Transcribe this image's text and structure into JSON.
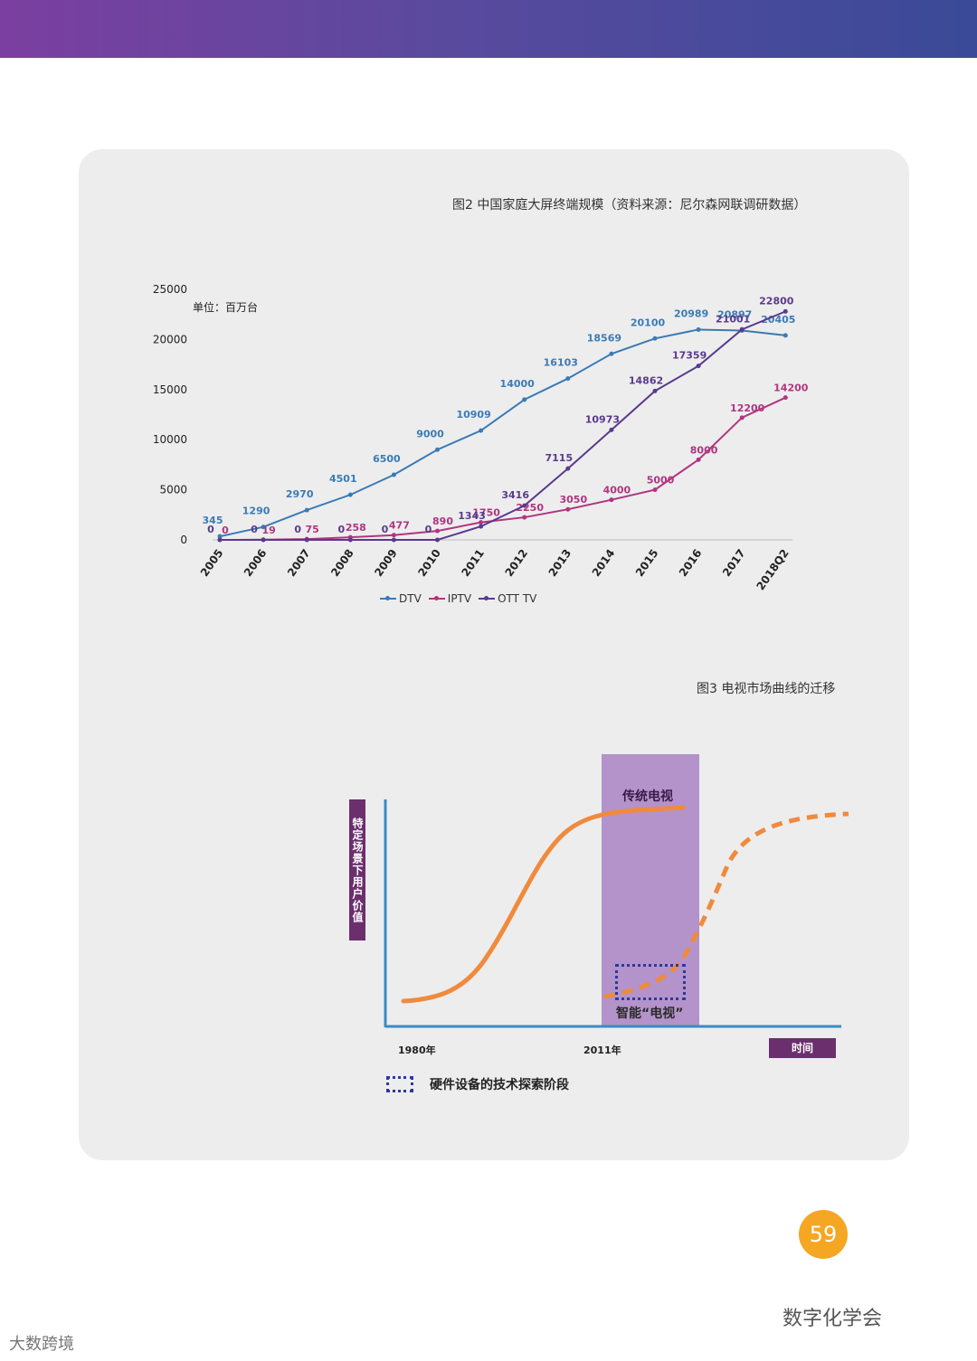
{
  "figure2": {
    "title": "图2 中国家庭大屏终端规模（资料来源：尼尔森网联调研数据）",
    "unit": "单位：百万台"
  },
  "figure3": {
    "title": "图3 电视市场曲线的迁移",
    "ylabel": "特定场景下用户价值",
    "xlabel": "时间",
    "tick_1980": "1980年",
    "tick_2011": "2011年",
    "traditional_tv": "传统电视",
    "smart_tv": "智能“电视”",
    "legend_hw": "硬件设备的技术探索阶段"
  },
  "chart_data": [
    {
      "type": "line",
      "title": "图2 中国家庭大屏终端规模（资料来源：尼尔森网联调研数据）",
      "categories": [
        "2005",
        "2006",
        "2007",
        "2008",
        "2009",
        "2010",
        "2011",
        "2012",
        "2013",
        "2014",
        "2015",
        "2016",
        "2017",
        "2018Q2"
      ],
      "series": [
        {
          "name": "DTV",
          "color": "#3a7bb5",
          "values": [
            345,
            1290,
            2970,
            4501,
            6500,
            9000,
            10909,
            14000,
            16103,
            18569,
            20100,
            20989,
            20897,
            20405
          ],
          "labels": [
            "345",
            "1290",
            "2970",
            "4501",
            "6500",
            "9000",
            "10909",
            "14000",
            "16103",
            "18569",
            "20100",
            "20989",
            "20897",
            "20405"
          ]
        },
        {
          "name": "IPTV",
          "color": "#b0357f",
          "values": [
            0,
            19,
            75,
            258,
            477,
            890,
            1750,
            2250,
            3050,
            4000,
            5000,
            8000,
            12200,
            14200
          ],
          "labels": [
            "0",
            "19",
            "75",
            "258",
            "477",
            "890",
            "1750",
            "2250",
            "3050",
            "4000",
            "5000",
            "8000",
            "12200",
            "14200"
          ]
        },
        {
          "name": "OTT TV",
          "color": "#5a3a8c",
          "values": [
            0,
            0,
            0,
            0,
            0,
            0,
            1343,
            3416,
            7115,
            10973,
            14862,
            17359,
            21001,
            22800
          ],
          "labels": [
            "0",
            "0",
            "0",
            "0",
            "0",
            "0",
            "1343",
            "3416",
            "7115",
            "10973",
            "14862",
            "17359",
            "21001",
            "22800"
          ]
        }
      ],
      "yticks": [
        0,
        5000,
        10000,
        15000,
        20000,
        25000
      ],
      "ylim": [
        0,
        25000
      ],
      "legend": "bottom",
      "grid": false
    },
    {
      "type": "line",
      "title": "图3 电视市场曲线的迁移",
      "xlabel": "时间",
      "ylabel": "特定场景下用户价值",
      "ticks": [
        "1980年",
        "2011年"
      ],
      "series": [
        {
          "name": "传统电视",
          "style": "solid",
          "color": "#f08a3c"
        },
        {
          "name": "智能“电视”",
          "style": "dashed",
          "color": "#f08a3c"
        }
      ]
    }
  ],
  "page_number": "59",
  "footer_right": "数字化学会",
  "footer_left": "大数跨境"
}
